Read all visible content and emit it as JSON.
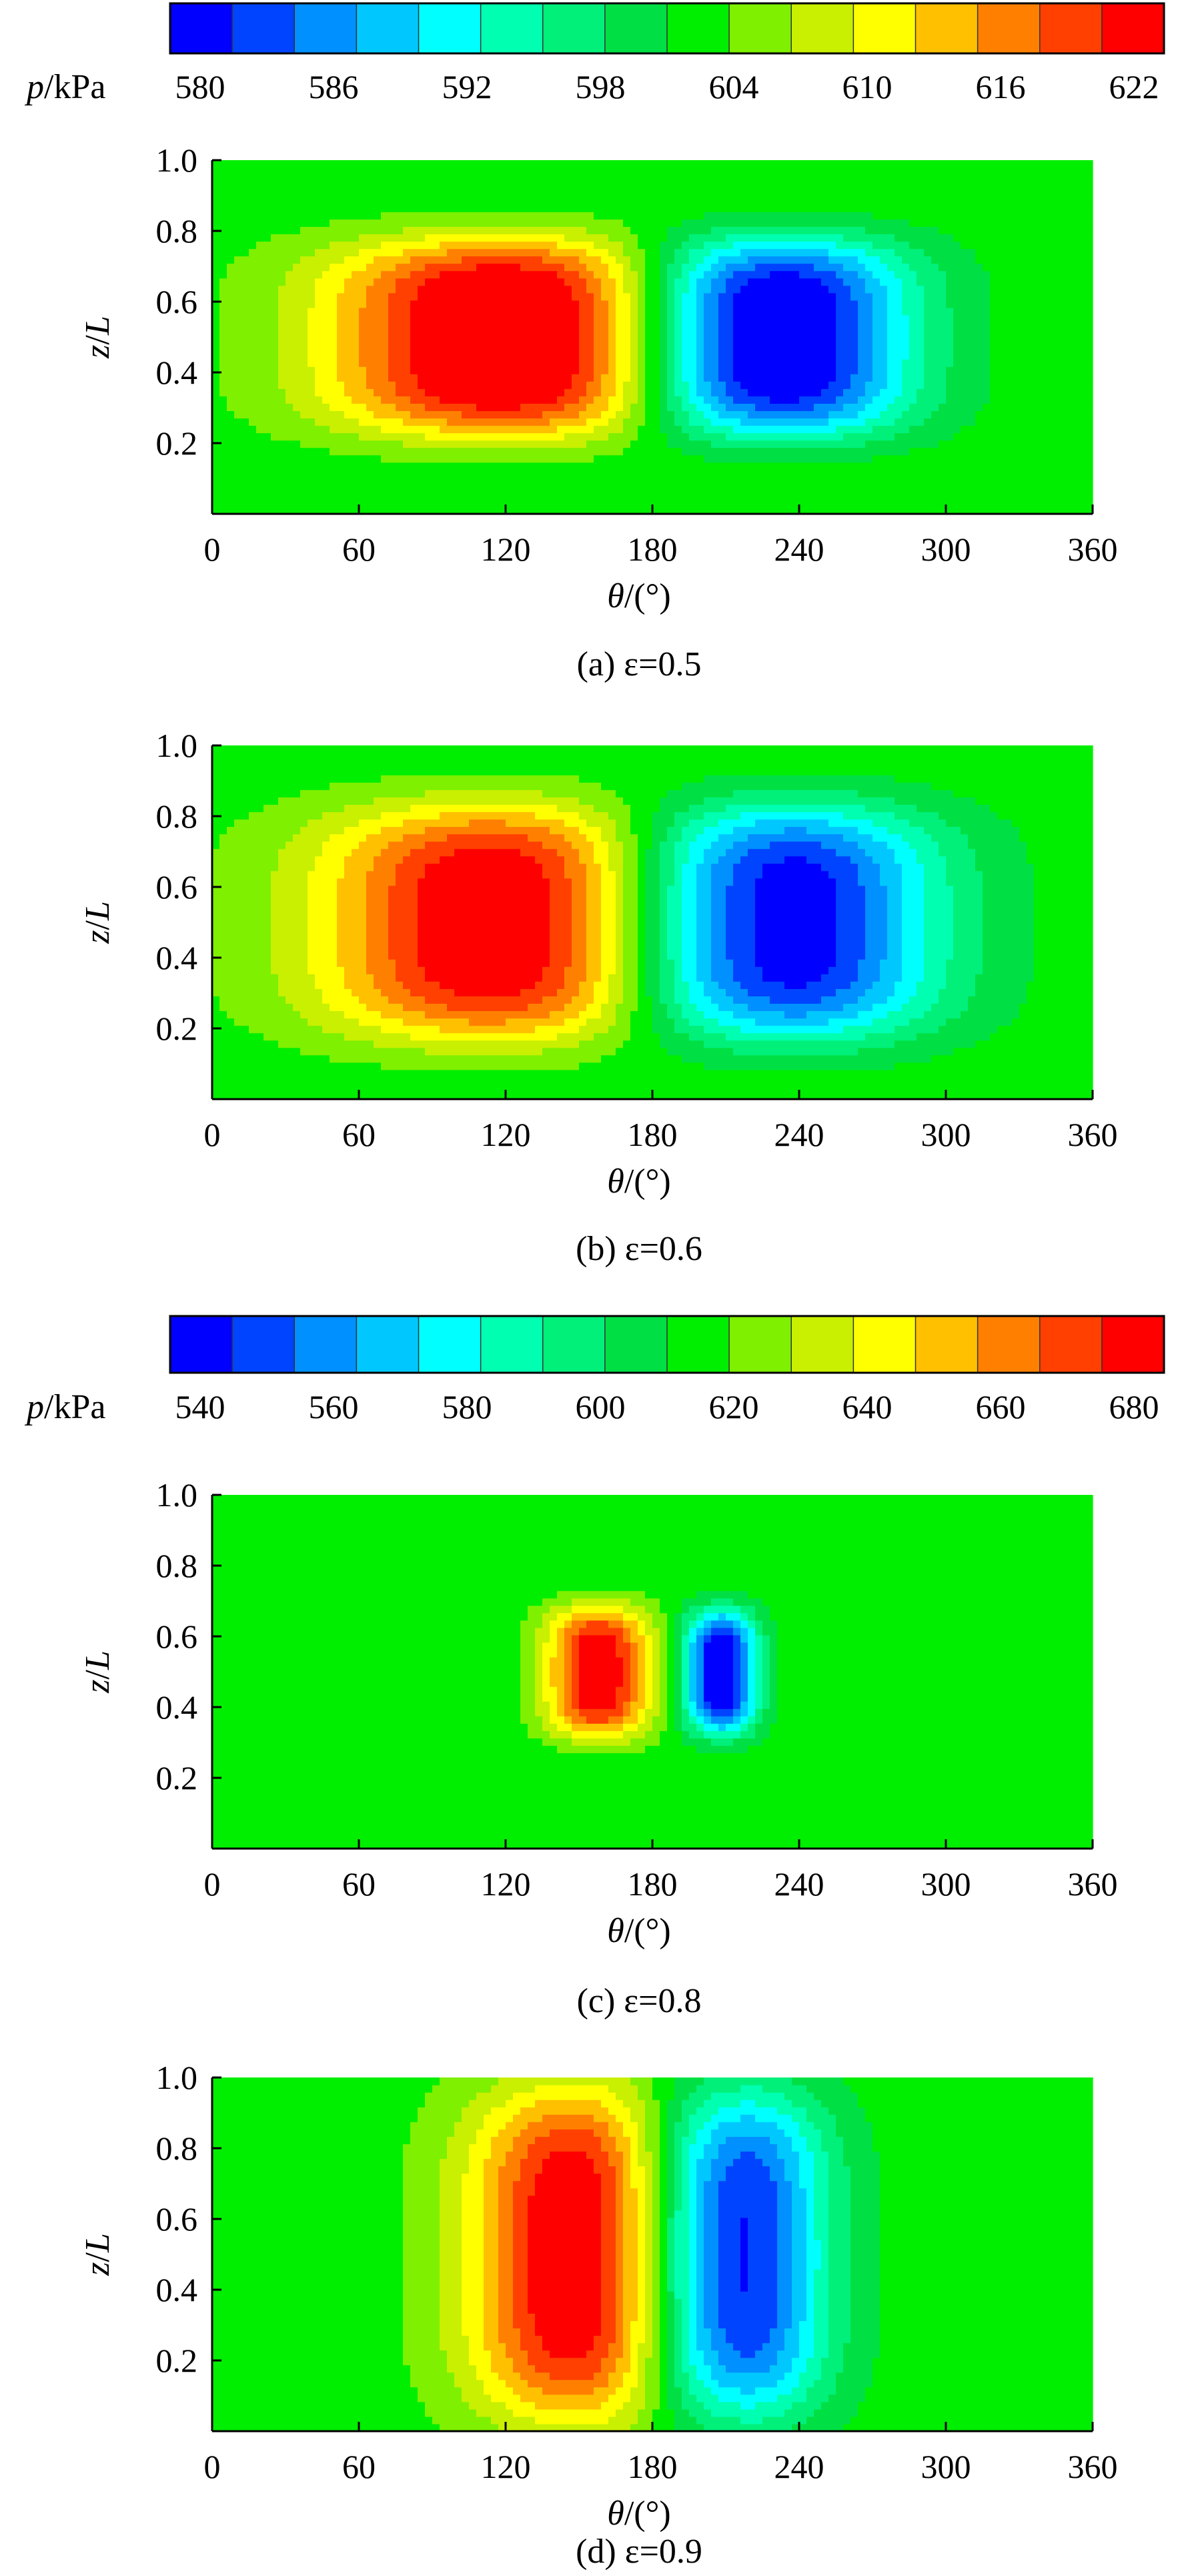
{
  "colorbars": [
    {
      "label_var": "p",
      "label_unit": "/kPa",
      "colors": [
        "#0000ff",
        "#0044ff",
        "#0090ff",
        "#00c8ff",
        "#00ffff",
        "#00ffb0",
        "#00f07a",
        "#00e044",
        "#00ee00",
        "#7ef000",
        "#c8f000",
        "#ffff00",
        "#ffc000",
        "#ff8000",
        "#ff4000",
        "#ff0000"
      ],
      "ticks": [
        "580",
        "586",
        "592",
        "598",
        "604",
        "610",
        "616",
        "622"
      ]
    },
    {
      "label_var": "p",
      "label_unit": "/kPa",
      "colors": [
        "#0000ff",
        "#0044ff",
        "#0090ff",
        "#00c8ff",
        "#00ffff",
        "#00ffb0",
        "#00f07a",
        "#00e044",
        "#00ee00",
        "#7ef000",
        "#c8f000",
        "#ffff00",
        "#ffc000",
        "#ff8000",
        "#ff4000",
        "#ff0000"
      ],
      "ticks": [
        "540",
        "560",
        "580",
        "600",
        "620",
        "640",
        "660",
        "680"
      ]
    }
  ],
  "chart_data": [
    {
      "type": "heatmap",
      "caption": "(a) ε=0.5",
      "xlabel_var": "θ",
      "xlabel_unit": "/(°)",
      "ylabel_var_z": "z",
      "ylabel_sep": "/",
      "ylabel_var_L": "L",
      "xlim": [
        0,
        360
      ],
      "ylim": [
        0,
        1.0
      ],
      "xticks": [
        0,
        60,
        120,
        180,
        240,
        300,
        360
      ],
      "yticks": [
        0.2,
        0.4,
        0.6,
        0.8,
        1.0
      ],
      "colorbar_range": [
        580,
        622
      ],
      "background_level": 8,
      "high": {
        "theta_center": 124,
        "z_center": 0.5,
        "theta_width": 72,
        "z_height": 0.54,
        "peak_level": 15
      },
      "low": {
        "theta_center": 226,
        "z_center": 0.5,
        "theta_width": 54,
        "z_height": 0.54,
        "peak_level": 0
      }
    },
    {
      "type": "heatmap",
      "caption": "(b) ε=0.6",
      "xlabel_var": "θ",
      "xlabel_unit": "/(°)",
      "ylabel_var_z": "z",
      "ylabel_sep": "/",
      "ylabel_var_L": "L",
      "xlim": [
        0,
        360
      ],
      "ylim": [
        0,
        1.0
      ],
      "xticks": [
        0,
        60,
        120,
        180,
        240,
        300,
        360
      ],
      "yticks": [
        0.2,
        0.4,
        0.6,
        0.8,
        1.0
      ],
      "colorbar_range": [
        580,
        622
      ],
      "background_level": 8,
      "high": {
        "theta_center": 130,
        "z_center": 0.5,
        "theta_width": 78,
        "z_height": 0.64,
        "peak_level": 15
      },
      "low": {
        "theta_center": 222,
        "z_center": 0.5,
        "theta_width": 66,
        "z_height": 0.64,
        "peak_level": 0
      }
    },
    {
      "type": "heatmap",
      "caption": "(c) ε=0.8",
      "xlabel_var": "θ",
      "xlabel_unit": "/(°)",
      "ylabel_var_z": "z",
      "ylabel_sep": "/",
      "ylabel_var_L": "L",
      "xlim": [
        0,
        360
      ],
      "ylim": [
        0,
        1.0
      ],
      "xticks": [
        0,
        60,
        120,
        180,
        240,
        300,
        360
      ],
      "yticks": [
        0.2,
        0.4,
        0.6,
        0.8,
        1.0
      ],
      "colorbar_range": [
        540,
        680
      ],
      "background_level": 8,
      "high": {
        "theta_center": 158,
        "z_center": 0.5,
        "theta_width": 20,
        "z_height": 0.36,
        "peak_level": 14
      },
      "low": {
        "theta_center": 208,
        "z_center": 0.5,
        "theta_width": 14,
        "z_height": 0.34,
        "peak_level": 1
      }
    },
    {
      "type": "heatmap",
      "caption": "(d) ε=0.9",
      "xlabel_var": "θ",
      "xlabel_unit": "/(°)",
      "ylabel_var_z": "z",
      "ylabel_sep": "/",
      "ylabel_var_L": "L",
      "xlim": [
        0,
        360
      ],
      "ylim": [
        0,
        1.0
      ],
      "xticks": [
        0,
        60,
        120,
        180,
        240,
        300,
        360
      ],
      "yticks": [
        0.2,
        0.4,
        0.6,
        0.8,
        1.0
      ],
      "colorbar_range": [
        540,
        680
      ],
      "background_level": 8,
      "high": {
        "theta_center": 158,
        "z_center": 0.5,
        "theta_width": 48,
        "z_height": 0.92,
        "peak_level": 15
      },
      "low": {
        "theta_center": 208,
        "z_center": 0.5,
        "theta_width": 38,
        "z_height": 0.9,
        "peak_level": 0
      }
    }
  ]
}
